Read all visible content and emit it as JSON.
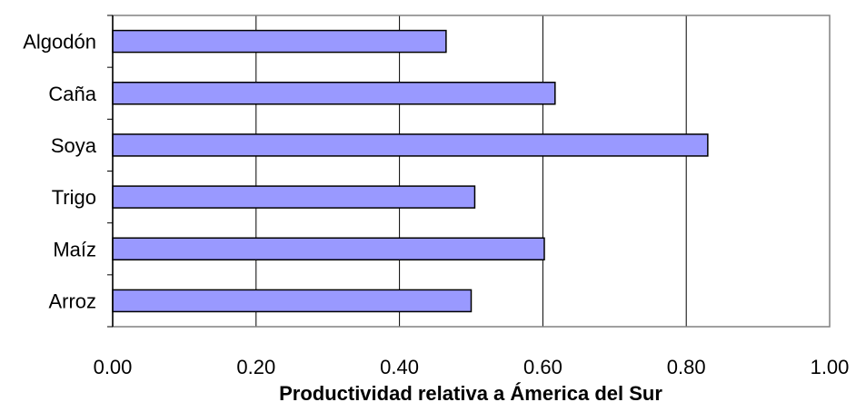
{
  "chart_data": {
    "type": "bar",
    "orientation": "horizontal",
    "categories": [
      "Algodón",
      "Caña",
      "Soya",
      "Trigo",
      "Maíz",
      "Arroz"
    ],
    "values": [
      0.465,
      0.617,
      0.83,
      0.505,
      0.602,
      0.5
    ],
    "xlabel": "Productividad relativa a Ámerica del Sur",
    "ylabel": "",
    "xlim": [
      0,
      1.0
    ],
    "xticks": [
      "0.00",
      "0.20",
      "0.40",
      "0.60",
      "0.80",
      "1.00"
    ],
    "grid": "vertical",
    "legend": "none",
    "colors": {
      "bar_fill": "#9999ff",
      "bar_stroke": "#000000",
      "grid": "#000000",
      "plot_border": "#808080"
    }
  }
}
